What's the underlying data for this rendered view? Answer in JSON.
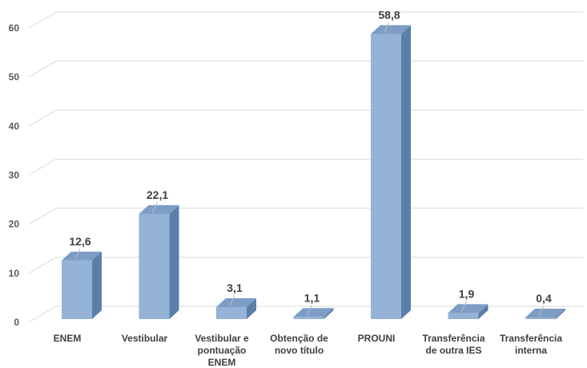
{
  "chart_data": {
    "type": "bar",
    "categories": [
      [
        "ENEM"
      ],
      [
        "Vestibular"
      ],
      [
        "Vestibular e",
        "pontuação",
        "ENEM"
      ],
      [
        "Obtenção de",
        "novo título"
      ],
      [
        "PROUNI"
      ],
      [
        "Transferência",
        "de outra IES"
      ],
      [
        "Transferência",
        "interna"
      ]
    ],
    "values": [
      12.6,
      22.1,
      3.1,
      1.1,
      58.8,
      1.9,
      0.4
    ],
    "data_labels": [
      "12,6",
      "22,1",
      "3,1",
      "1,1",
      "58,8",
      "1,9",
      "0,4"
    ],
    "y_ticks": [
      "0",
      "10",
      "20",
      "30",
      "40",
      "50",
      "60"
    ],
    "ylim": [
      0,
      60
    ],
    "title": "",
    "xlabel": "",
    "ylabel": "",
    "grid": true,
    "style": "3d-column",
    "colors": {
      "front": "#95b3d7",
      "top": "#7d9dc7",
      "side": "#5b7fa8",
      "grid": "#d9d9d9",
      "text": "#404040"
    }
  }
}
